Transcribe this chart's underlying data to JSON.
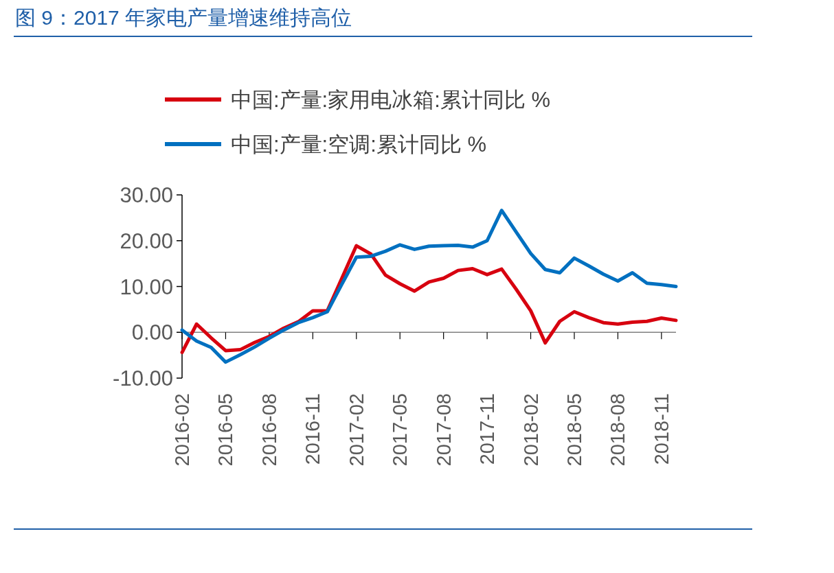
{
  "chart_data": {
    "type": "line",
    "title": "图 9：2017 年家电产量增速维持高位",
    "categories": [
      "2016-02",
      null,
      null,
      "2016-05",
      null,
      null,
      "2016-08",
      null,
      null,
      "2016-11",
      null,
      null,
      "2017-02",
      null,
      null,
      "2017-05",
      null,
      null,
      "2017-08",
      null,
      null,
      "2017-11",
      null,
      null,
      "2018-02",
      null,
      null,
      "2018-05",
      null,
      null,
      "2018-08",
      null,
      null,
      "2018-11",
      null
    ],
    "series": [
      {
        "name": "中国:产量:家用电冰箱:累计同比 %",
        "color": "#d7000f",
        "values": [
          -4.4,
          1.8,
          -1.2,
          -4.0,
          -3.8,
          -2.2,
          -0.9,
          0.9,
          2.3,
          4.7,
          4.7,
          11.8,
          18.9,
          17.1,
          12.5,
          10.6,
          9.0,
          11.0,
          11.8,
          13.5,
          13.9,
          12.6,
          13.8,
          9.4,
          4.7,
          -2.3,
          2.4,
          4.5,
          3.2,
          2.1,
          1.8,
          2.2,
          2.4,
          3.1,
          2.6
        ]
      },
      {
        "name": "中国:产量:空调:累计同比 %",
        "color": "#0070c0",
        "values": [
          0.5,
          -1.9,
          -3.3,
          -6.5,
          -4.9,
          -3.2,
          -1.3,
          0.5,
          2.1,
          3.2,
          4.5,
          10.5,
          16.4,
          16.6,
          17.7,
          19.1,
          18.1,
          18.8,
          18.9,
          19.0,
          18.6,
          20.0,
          26.6,
          21.9,
          17.2,
          13.7,
          13.0,
          16.2,
          14.5,
          12.7,
          11.2,
          13.0,
          10.7,
          10.4,
          10.0
        ]
      }
    ],
    "ylim": [
      -10,
      30
    ],
    "yticks": [
      {
        "value": -10,
        "label": "-10.00"
      },
      {
        "value": 0,
        "label": "0.00"
      },
      {
        "value": 10,
        "label": "10.00"
      },
      {
        "value": 20,
        "label": "20.00"
      },
      {
        "value": 30,
        "label": "30.00"
      }
    ],
    "legend": "top",
    "marker": "none",
    "line_style": "solid"
  }
}
